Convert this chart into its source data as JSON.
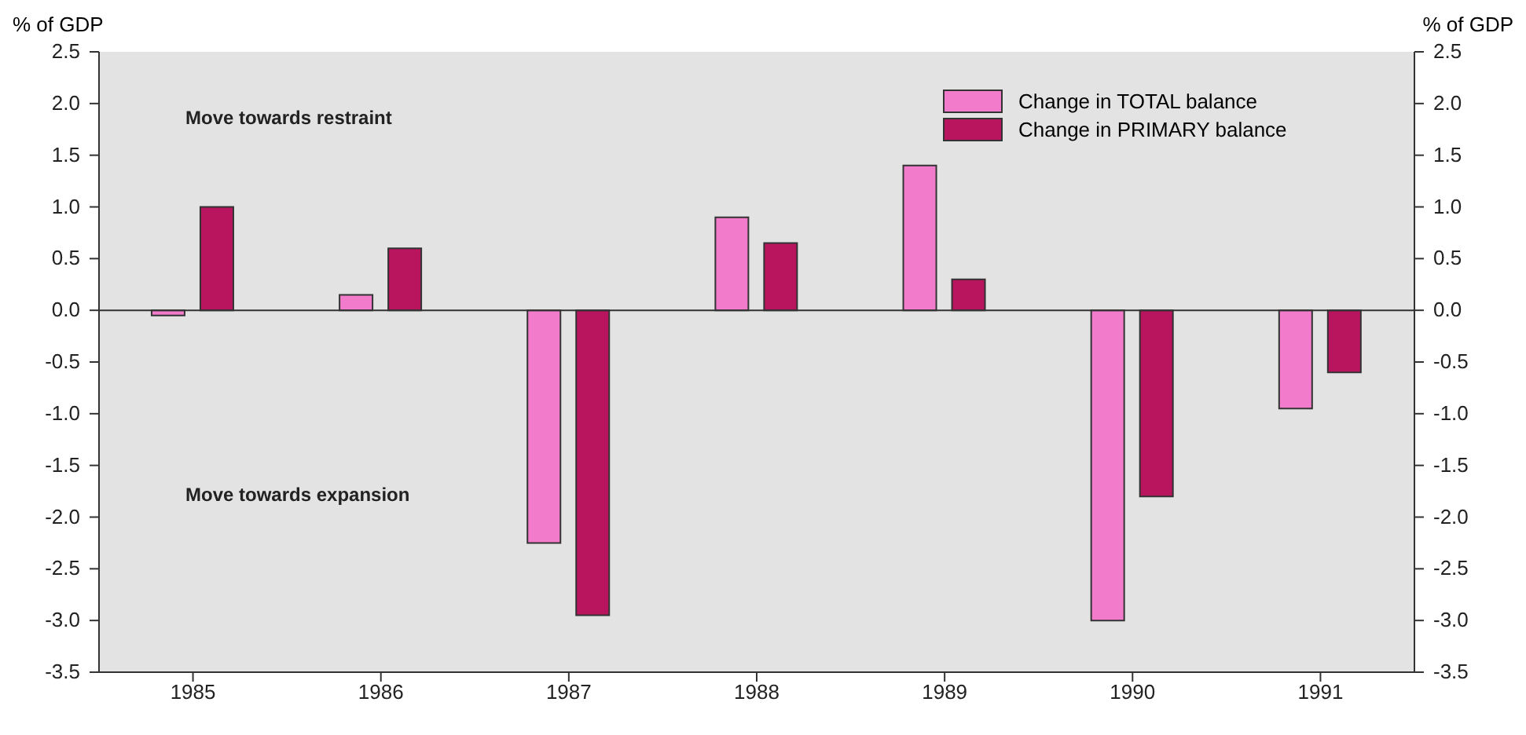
{
  "chart_data": {
    "type": "bar",
    "ylabel": "% of GDP",
    "y2label": "% of GDP",
    "categories": [
      "1985",
      "1986",
      "1987",
      "1988",
      "1989",
      "1990",
      "1991"
    ],
    "series": [
      {
        "name": "Change in TOTAL balance",
        "color": "#f27ccb",
        "values": [
          -0.05,
          0.15,
          -2.25,
          0.9,
          1.4,
          -3.0,
          -0.95
        ]
      },
      {
        "name": "Change in PRIMARY balance",
        "color": "#b8155e",
        "values": [
          1.0,
          0.6,
          -2.95,
          0.65,
          0.3,
          -1.8,
          -0.6
        ]
      }
    ],
    "ylim": [
      -3.5,
      2.5
    ],
    "yticks": [
      {
        "value": 2.5,
        "label": "2.5"
      },
      {
        "value": 2,
        "label": "2.0"
      },
      {
        "value": 1.5,
        "label": "1.5"
      },
      {
        "value": 1,
        "label": "1.0"
      },
      {
        "value": 0.5,
        "label": "0.5"
      },
      {
        "value": 0,
        "label": "0.0"
      },
      {
        "value": -0.5,
        "label": "-0.5"
      },
      {
        "value": -1,
        "label": "-1.0"
      },
      {
        "value": -1.5,
        "label": "-1.5"
      },
      {
        "value": -2,
        "label": "-2.0"
      },
      {
        "value": -2.5,
        "label": "-2.5"
      },
      {
        "value": -3,
        "label": "-3.0"
      },
      {
        "value": -3.5,
        "label": "-3.5"
      }
    ],
    "y2lim": [
      -3.5,
      2.5
    ],
    "y2ticks": [
      {
        "value": 2.5,
        "label": "2.5"
      },
      {
        "value": 2,
        "label": "2.0"
      },
      {
        "value": 1.5,
        "label": "1.5"
      },
      {
        "value": 1,
        "label": "1.0"
      },
      {
        "value": 0.5,
        "label": "0.5"
      },
      {
        "value": 0,
        "label": "0.0"
      },
      {
        "value": -0.5,
        "label": "-0.5"
      },
      {
        "value": -1,
        "label": "-1.0"
      },
      {
        "value": -1.5,
        "label": "-1.5"
      },
      {
        "value": -2,
        "label": "-2.0"
      },
      {
        "value": -2.5,
        "label": "-2.5"
      },
      {
        "value": -3,
        "label": "-3.0"
      },
      {
        "value": -3.5,
        "label": "-3.5"
      }
    ],
    "annotations": [
      "Move towards restraint",
      "Move towards expansion"
    ],
    "legend": "top right"
  }
}
